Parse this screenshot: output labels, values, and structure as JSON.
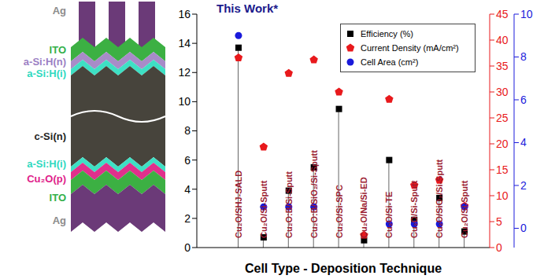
{
  "diagram": {
    "layers": [
      {
        "label": "Ag",
        "color": "#6b3a78"
      },
      {
        "label": "ITO",
        "color": "#3cb043"
      },
      {
        "label": "a-Si:H(n)",
        "color": "#a88bc8"
      },
      {
        "label": "a-Si:H(i)",
        "color": "#3ee0c4"
      },
      {
        "label": "c-Si(n)",
        "color": "#47443c"
      },
      {
        "label": "a-Si:H(i)",
        "color": "#3ee0c4"
      },
      {
        "label": "Cu₂O(p)",
        "color": "#e0308c"
      },
      {
        "label": "ITO",
        "color": "#3cb043"
      },
      {
        "label": "Ag",
        "color": "#6b3a78"
      }
    ]
  },
  "chart_data": {
    "type": "scatter",
    "annotation": "This Work*",
    "x_label": "Cell Type - Deposition Technique",
    "categories": [
      "Cu₂O/SHJ-SALD",
      "Cu₂O/Si-Sputt",
      "Cu₂O:B/Si-Sputt",
      "Cu₂O:B/SiO₂/Si-Sputt",
      "Cu₂O/Si-SPC",
      "Cu₂O/Na/Si-ED",
      "Cu₂O/Si-TE",
      "Cu₂O/Si-Sputt",
      "Cu₂O/SiO₂/Si-Sputt",
      "Cu₂O/Si-Sputt"
    ],
    "series": [
      {
        "name": "Efficiency (%)",
        "color": "#000000",
        "marker": "square",
        "type": "stem",
        "values": [
          13.7,
          0.7,
          3.9,
          5.5,
          9.5,
          0.5,
          6.0,
          1.9,
          3.4,
          1.1
        ]
      },
      {
        "name": "Current Density (mA/cm²)",
        "color": "#e8191c",
        "marker": "pentagon",
        "type": "scatter",
        "axis": "y2",
        "values": [
          36.6,
          19.4,
          33.6,
          36.2,
          30.0,
          2.4,
          28.6,
          12.0,
          13.0,
          8.0
        ]
      },
      {
        "name": "Cell Area (cm²)",
        "color": "#1a1adb",
        "marker": "circle",
        "type": "scatter",
        "axis": "y3",
        "values": [
          9.0,
          1.0,
          1.0,
          1.0,
          null,
          null,
          0.2,
          0.2,
          0.2,
          1.0
        ]
      }
    ],
    "ylim": [
      0,
      16
    ],
    "yticks": [
      0,
      2,
      4,
      6,
      8,
      10,
      12,
      14,
      16
    ],
    "y2lim": [
      0,
      45
    ],
    "y2ticks": [
      0,
      5,
      10,
      15,
      20,
      25,
      30,
      35,
      40,
      45
    ],
    "y3lim": [
      -0.9,
      10
    ],
    "y3ticks": [
      0,
      2,
      4,
      6,
      8,
      10
    ],
    "legend": "upper right"
  }
}
